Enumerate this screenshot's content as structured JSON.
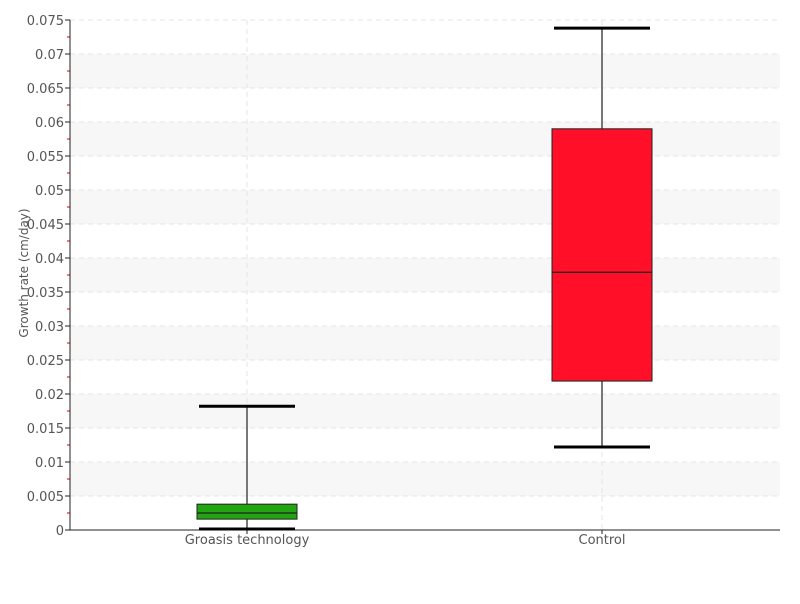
{
  "chart_data": {
    "type": "box",
    "title": "",
    "xlabel": "",
    "ylabel": "Growth rate (cm/day)",
    "ylim": [
      0,
      0.075
    ],
    "ytick_step": 0.005,
    "yticks": [
      "0",
      "0.005",
      "0.01",
      "0.015",
      "0.02",
      "0.025",
      "0.03",
      "0.035",
      "0.04",
      "0.045",
      "0.05",
      "0.055",
      "0.06",
      "0.065",
      "0.07",
      "0.075"
    ],
    "grid": true,
    "categories": [
      "Groasis technology",
      "Control"
    ],
    "series": [
      {
        "category": "Groasis technology",
        "min": 0.00015,
        "q1": 0.0016,
        "median": 0.0025,
        "q3": 0.0038,
        "max": 0.0182,
        "color": "#22a511"
      },
      {
        "category": "Control",
        "min": 0.0122,
        "q1": 0.0219,
        "median": 0.0379,
        "q3": 0.059,
        "max": 0.0738,
        "color": "#ff0f28"
      }
    ]
  }
}
